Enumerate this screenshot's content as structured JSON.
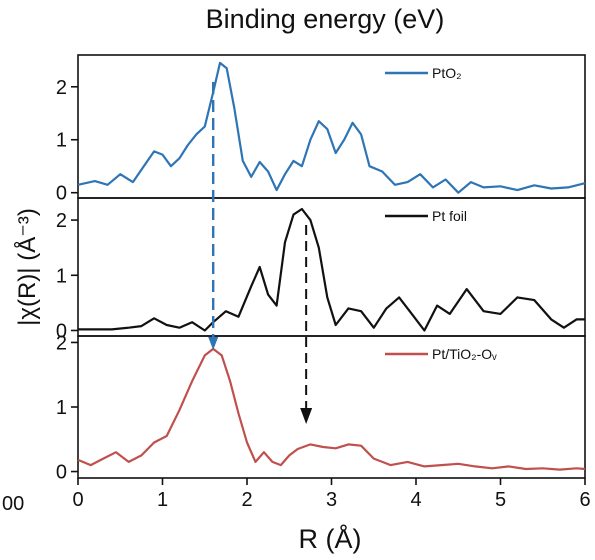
{
  "top_title": "Binding energy (eV)",
  "edge_label": "00",
  "chart_data": {
    "type": "line",
    "layout": "stacked-panels",
    "shared_x": {
      "label": "R (Å)",
      "range": [
        0,
        6
      ],
      "ticks": [
        "0",
        "1",
        "2",
        "3",
        "4",
        "5",
        "6"
      ]
    },
    "y_label": "|χ(R)| (Å⁻³)",
    "grid": false,
    "panels": [
      {
        "legend": "PtO₂",
        "color": "#2e75b6",
        "ylim": [
          -0.1,
          2.6
        ],
        "yticks": [
          0,
          1,
          2
        ],
        "x": [
          0,
          0.2,
          0.35,
          0.5,
          0.65,
          0.8,
          0.9,
          1.0,
          1.1,
          1.2,
          1.3,
          1.4,
          1.5,
          1.6,
          1.68,
          1.76,
          1.85,
          1.95,
          2.05,
          2.15,
          2.25,
          2.35,
          2.45,
          2.55,
          2.65,
          2.75,
          2.85,
          2.95,
          3.05,
          3.15,
          3.25,
          3.35,
          3.45,
          3.6,
          3.75,
          3.9,
          4.05,
          4.2,
          4.35,
          4.5,
          4.65,
          4.8,
          5.0,
          5.2,
          5.4,
          5.6,
          5.8,
          6.0
        ],
        "y": [
          0.15,
          0.22,
          0.15,
          0.35,
          0.2,
          0.55,
          0.78,
          0.72,
          0.5,
          0.65,
          0.9,
          1.1,
          1.25,
          1.9,
          2.45,
          2.35,
          1.6,
          0.6,
          0.3,
          0.58,
          0.4,
          0.05,
          0.35,
          0.6,
          0.5,
          1.0,
          1.35,
          1.2,
          0.75,
          1.0,
          1.32,
          1.1,
          0.5,
          0.4,
          0.15,
          0.2,
          0.35,
          0.1,
          0.25,
          0.0,
          0.2,
          0.1,
          0.12,
          0.05,
          0.14,
          0.08,
          0.1,
          0.18
        ]
      },
      {
        "legend": "Pt foil",
        "color": "#111111",
        "ylim": [
          -0.1,
          2.4
        ],
        "yticks": [
          0,
          1,
          2
        ],
        "x": [
          0,
          0.4,
          0.6,
          0.75,
          0.9,
          1.05,
          1.2,
          1.35,
          1.5,
          1.6,
          1.75,
          1.9,
          2.05,
          2.15,
          2.25,
          2.35,
          2.45,
          2.55,
          2.65,
          2.75,
          2.85,
          2.95,
          3.05,
          3.2,
          3.35,
          3.5,
          3.65,
          3.8,
          3.95,
          4.1,
          4.25,
          4.4,
          4.6,
          4.8,
          5.0,
          5.2,
          5.4,
          5.6,
          5.75,
          5.9,
          6.0
        ],
        "y": [
          0.02,
          0.02,
          0.05,
          0.08,
          0.22,
          0.1,
          0.05,
          0.15,
          0.0,
          0.15,
          0.35,
          0.25,
          0.8,
          1.15,
          0.65,
          0.45,
          1.6,
          2.1,
          2.2,
          2.0,
          1.5,
          0.6,
          0.1,
          0.4,
          0.35,
          0.05,
          0.4,
          0.6,
          0.3,
          0.0,
          0.45,
          0.3,
          0.75,
          0.35,
          0.3,
          0.6,
          0.55,
          0.2,
          0.05,
          0.2,
          0.2
        ]
      },
      {
        "legend": "Pt/TiO₂-Oᵥ",
        "color": "#c0504d",
        "ylim": [
          -0.1,
          2.1
        ],
        "yticks": [
          0,
          1,
          2
        ],
        "x": [
          0,
          0.15,
          0.3,
          0.45,
          0.6,
          0.75,
          0.9,
          1.05,
          1.2,
          1.35,
          1.5,
          1.6,
          1.7,
          1.8,
          1.9,
          2.0,
          2.1,
          2.2,
          2.3,
          2.4,
          2.5,
          2.6,
          2.75,
          2.9,
          3.05,
          3.2,
          3.35,
          3.5,
          3.7,
          3.9,
          4.1,
          4.3,
          4.5,
          4.7,
          4.9,
          5.1,
          5.3,
          5.5,
          5.7,
          5.9,
          6.0
        ],
        "y": [
          0.18,
          0.1,
          0.2,
          0.3,
          0.15,
          0.25,
          0.45,
          0.55,
          0.95,
          1.4,
          1.8,
          1.9,
          1.8,
          1.4,
          0.9,
          0.45,
          0.15,
          0.3,
          0.15,
          0.1,
          0.25,
          0.35,
          0.42,
          0.38,
          0.36,
          0.42,
          0.4,
          0.2,
          0.1,
          0.15,
          0.08,
          0.1,
          0.12,
          0.08,
          0.05,
          0.08,
          0.04,
          0.05,
          0.03,
          0.05,
          0.04
        ]
      }
    ],
    "annotations": [
      {
        "type": "dashed-arrow",
        "color": "#2e75b6",
        "x": 1.6,
        "from": "panel 1 top",
        "to": "panel 3 top"
      },
      {
        "type": "dashed-arrow",
        "color": "#111111",
        "x": 2.7,
        "from": "panel 2 peak",
        "to": "panel 3"
      }
    ]
  }
}
